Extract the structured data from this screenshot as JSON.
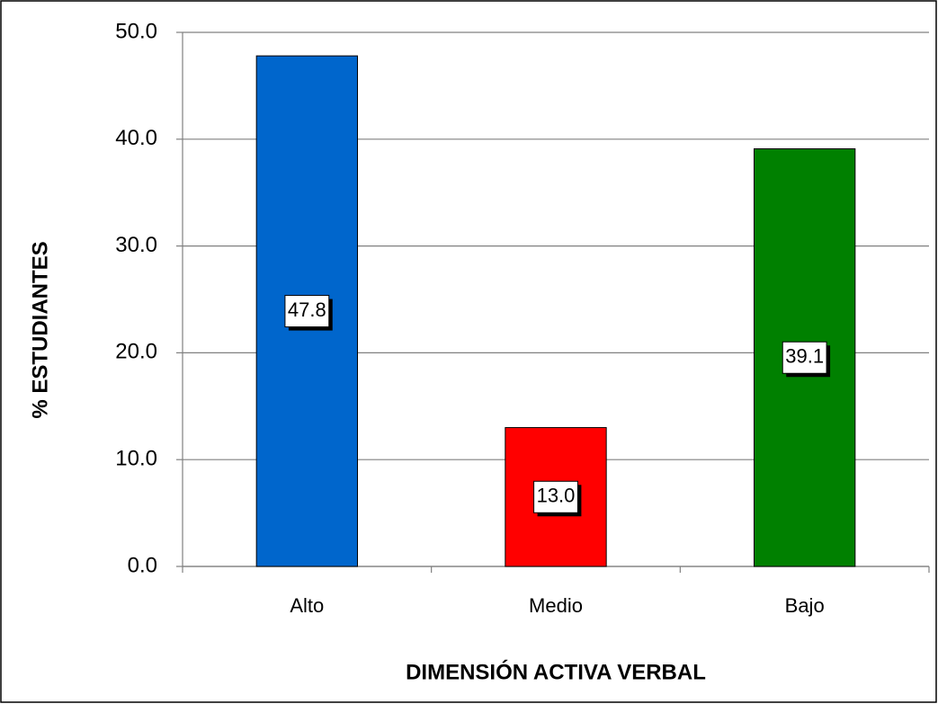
{
  "chart_data": {
    "type": "bar",
    "categories": [
      "Alto",
      "Medio",
      "Bajo"
    ],
    "values": [
      47.8,
      13.0,
      39.1
    ],
    "value_labels": [
      "47.8",
      "13.0",
      "39.1"
    ],
    "colors": [
      "#0066cc",
      "#ff0000",
      "#008000"
    ],
    "xlabel": "DIMENSIÓN ACTIVA VERBAL",
    "ylabel": "% ESTUDIANTES",
    "ylim": [
      0,
      50
    ],
    "yticks": [
      {
        "value": 0,
        "label": "0.0"
      },
      {
        "value": 10,
        "label": "10.0"
      },
      {
        "value": 20,
        "label": "20.0"
      },
      {
        "value": 30,
        "label": "30.0"
      },
      {
        "value": 40,
        "label": "40.0"
      },
      {
        "value": 50,
        "label": "50.0"
      }
    ],
    "grid": true
  }
}
